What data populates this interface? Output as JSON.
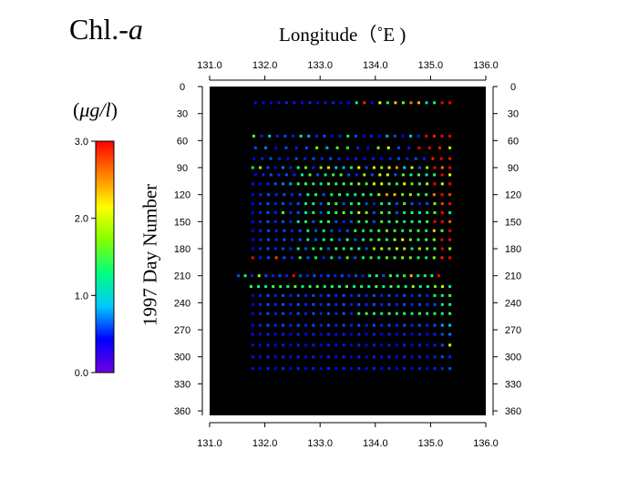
{
  "chart_data": {
    "type": "scatter",
    "title_main": "Chl.-",
    "title_italic": "a",
    "xlabel": "Longitude（˚E )",
    "ylabel": "1997  Day  Number",
    "unit_open": "(",
    "unit_italic": "μg/l",
    "unit_close": ")",
    "x_ticks": [
      "131.0",
      "132.0",
      "133.0",
      "134.0",
      "135.0",
      "136.0"
    ],
    "xlim": [
      131.0,
      136.0
    ],
    "y_ticks": [
      "0",
      "30",
      "60",
      "90",
      "120",
      "150",
      "180",
      "210",
      "240",
      "270",
      "300",
      "330",
      "360"
    ],
    "ylim": [
      0,
      365
    ],
    "colorbar": {
      "ticks": [
        "0.0",
        "1.0",
        "2.0",
        "3.0"
      ],
      "range": [
        0.0,
        3.0
      ],
      "colormap": [
        "#7000e0",
        "#0000ff",
        "#00c8ff",
        "#00ff80",
        "#80ff00",
        "#ffff00",
        "#ff8000",
        "#ff0000"
      ]
    },
    "background": "#000000",
    "rows": [
      {
        "day": 18,
        "x0": 131.83,
        "x1": 135.35,
        "n": 26,
        "vals": [
          0.3,
          0.4,
          0.4,
          0.3,
          0.5,
          0.3,
          0.4,
          0.5,
          0.4,
          0.3,
          0.5,
          0.4,
          0.4,
          1.2,
          2.9,
          0.4,
          2.1,
          1.4,
          2.3,
          1.6,
          2.6,
          2.4,
          1.0,
          1.2,
          3.0,
          3.0
        ]
      },
      {
        "day": 55,
        "x0": 131.8,
        "x1": 135.35,
        "n": 26,
        "vals": [
          1.6,
          0.5,
          1.0,
          0.5,
          0.6,
          0.5,
          1.2,
          0.8,
          0.5,
          0.6,
          0.4,
          0.5,
          1.3,
          0.6,
          0.4,
          0.5,
          0.4,
          0.8,
          0.6,
          0.4,
          0.9,
          0.5,
          3.0,
          2.9,
          3.0,
          3.0
        ]
      },
      {
        "day": 68,
        "x0": 131.83,
        "x1": 135.35,
        "n": 20,
        "vals": [
          0.6,
          0.7,
          0.4,
          0.6,
          0.5,
          0.6,
          1.7,
          0.8,
          1.6,
          1.4,
          0.5,
          0.4,
          1.7,
          2.1,
          0.6,
          0.5,
          3.0,
          3.0,
          2.9,
          1.9
        ]
      },
      {
        "day": 80,
        "x0": 131.8,
        "x1": 135.35,
        "n": 24,
        "vals": [
          0.4,
          0.5,
          0.6,
          0.5,
          0.4,
          0.6,
          0.5,
          0.6,
          0.5,
          0.6,
          0.5,
          0.4,
          0.5,
          0.4,
          0.5,
          0.4,
          0.5,
          0.6,
          0.5,
          0.6,
          0.5,
          2.9,
          3.0,
          2.9
        ]
      },
      {
        "day": 90,
        "x0": 131.78,
        "x1": 135.35,
        "n": 27,
        "vals": [
          1.3,
          1.8,
          0.6,
          0.4,
          0.7,
          0.5,
          1.4,
          1.6,
          0.5,
          1.7,
          2.3,
          0.9,
          0.8,
          1.3,
          2.1,
          0.6,
          2.2,
          1.7,
          2.0,
          2.5,
          0.9,
          2.0,
          0.6,
          1.8,
          3.0,
          2.6,
          3.0
        ]
      },
      {
        "day": 98,
        "x0": 131.83,
        "x1": 135.35,
        "n": 26,
        "vals": [
          0.4,
          0.5,
          0.6,
          0.5,
          0.6,
          0.5,
          1.2,
          1.5,
          0.6,
          1.2,
          1.4,
          1.5,
          0.6,
          0.5,
          1.8,
          0.6,
          2.0,
          2.0,
          0.6,
          1.6,
          1.3,
          1.5,
          1.2,
          1.4,
          3.0,
          2.1
        ]
      },
      {
        "day": 108,
        "x0": 131.78,
        "x1": 135.35,
        "n": 27,
        "vals": [
          0.3,
          0.4,
          0.5,
          0.6,
          0.7,
          0.8,
          1.4,
          1.5,
          1.3,
          1.2,
          1.6,
          1.4,
          1.5,
          1.6,
          1.7,
          1.5,
          2.2,
          2.0,
          1.5,
          1.4,
          2.1,
          1.5,
          1.4,
          1.9,
          3.0,
          2.0,
          3.0
        ]
      },
      {
        "day": 120,
        "x0": 131.78,
        "x1": 135.35,
        "n": 26,
        "vals": [
          0.4,
          0.5,
          0.6,
          0.5,
          0.6,
          0.5,
          0.6,
          1.2,
          1.4,
          0.6,
          1.3,
          1.5,
          1.3,
          1.2,
          1.4,
          1.3,
          1.8,
          2.5,
          2.4,
          1.6,
          1.8,
          1.5,
          1.4,
          2.6,
          3.0,
          2.8
        ]
      },
      {
        "day": 130,
        "x0": 131.78,
        "x1": 135.35,
        "n": 27,
        "vals": [
          0.4,
          0.5,
          0.6,
          0.5,
          0.6,
          0.5,
          0.6,
          1.2,
          1.3,
          0.6,
          1.4,
          1.5,
          0.6,
          1.2,
          1.4,
          0.6,
          0.5,
          1.3,
          1.2,
          0.6,
          1.5,
          0.6,
          0.5,
          0.6,
          1.7,
          2.8,
          3.0
        ]
      },
      {
        "day": 140,
        "x0": 131.78,
        "x1": 135.35,
        "n": 27,
        "vals": [
          0.4,
          0.5,
          0.6,
          0.5,
          1.6,
          0.5,
          0.6,
          1.2,
          1.4,
          0.6,
          1.3,
          1.5,
          1.7,
          1.2,
          2.0,
          1.7,
          0.6,
          1.5,
          1.4,
          0.6,
          1.3,
          1.5,
          1.2,
          1.4,
          1.6,
          3.0,
          1.2
        ]
      },
      {
        "day": 150,
        "x0": 131.78,
        "x1": 135.35,
        "n": 27,
        "vals": [
          0.4,
          0.5,
          0.6,
          0.5,
          0.6,
          0.5,
          1.2,
          1.4,
          0.6,
          1.3,
          1.5,
          0.6,
          0.5,
          0.6,
          1.2,
          1.4,
          0.6,
          1.5,
          1.3,
          1.5,
          1.2,
          1.4,
          1.3,
          1.5,
          3.0,
          3.0,
          2.7
        ]
      },
      {
        "day": 160,
        "x0": 131.78,
        "x1": 135.35,
        "n": 26,
        "vals": [
          0.4,
          0.5,
          0.6,
          0.5,
          0.6,
          0.5,
          0.6,
          1.2,
          0.6,
          1.3,
          0.6,
          0.5,
          0.6,
          1.5,
          1.3,
          1.2,
          1.4,
          1.6,
          1.5,
          1.3,
          1.4,
          1.5,
          1.3,
          2.3,
          1.6,
          3.0
        ]
      },
      {
        "day": 170,
        "x0": 131.78,
        "x1": 135.35,
        "n": 26,
        "vals": [
          0.4,
          0.5,
          0.6,
          0.5,
          0.6,
          0.5,
          0.6,
          1.2,
          0.6,
          1.3,
          1.4,
          0.6,
          1.5,
          0.6,
          1.2,
          1.4,
          1.6,
          1.3,
          1.8,
          2.1,
          1.6,
          1.4,
          1.5,
          1.7,
          3.0,
          3.0
        ]
      },
      {
        "day": 180,
        "x0": 131.78,
        "x1": 135.35,
        "n": 27,
        "vals": [
          0.4,
          0.5,
          0.6,
          0.5,
          0.6,
          0.5,
          1.2,
          0.6,
          1.3,
          1.4,
          0.6,
          1.5,
          1.3,
          1.4,
          1.2,
          0.6,
          1.7,
          1.9,
          1.5,
          2.0,
          1.8,
          1.2,
          1.8,
          1.6,
          1.5,
          3.0,
          1.8
        ]
      },
      {
        "day": 190,
        "x0": 131.78,
        "x1": 135.35,
        "n": 26,
        "vals": [
          3.0,
          0.5,
          0.6,
          2.8,
          0.6,
          0.5,
          1.4,
          0.6,
          1.3,
          0.5,
          1.2,
          0.6,
          1.5,
          0.6,
          1.3,
          1.4,
          1.2,
          1.6,
          1.5,
          1.8,
          1.6,
          1.4,
          1.3,
          1.7,
          2.9,
          3.0
        ]
      },
      {
        "day": 210,
        "x0": 131.52,
        "x1": 135.15,
        "n": 30,
        "vals": [
          0.6,
          1.3,
          0.5,
          1.8,
          0.6,
          0.5,
          0.6,
          0.5,
          3.0,
          0.6,
          0.5,
          0.6,
          0.5,
          0.6,
          0.5,
          0.6,
          0.5,
          0.6,
          0.5,
          1.3,
          1.4,
          0.6,
          1.5,
          1.3,
          1.4,
          2.4,
          1.2,
          1.3,
          1.4,
          3.0
        ]
      },
      {
        "day": 222,
        "x0": 131.75,
        "x1": 135.35,
        "n": 28,
        "vals": [
          1.4,
          1.3,
          1.2,
          1.5,
          1.4,
          1.3,
          1.6,
          1.2,
          1.4,
          1.5,
          1.3,
          1.4,
          1.2,
          1.5,
          1.3,
          1.4,
          1.2,
          1.6,
          1.3,
          1.5,
          1.4,
          1.3,
          1.8,
          1.2,
          1.4,
          1.6,
          1.9,
          1.2
        ]
      },
      {
        "day": 232,
        "x0": 131.78,
        "x1": 135.35,
        "n": 27,
        "vals": [
          0.4,
          0.5,
          0.6,
          0.5,
          0.6,
          0.5,
          0.6,
          0.5,
          0.6,
          0.5,
          0.6,
          0.5,
          0.6,
          0.5,
          0.6,
          0.5,
          0.6,
          0.5,
          0.6,
          0.5,
          0.6,
          0.5,
          0.6,
          0.5,
          1.3,
          1.2,
          1.4
        ]
      },
      {
        "day": 242,
        "x0": 131.78,
        "x1": 135.35,
        "n": 27,
        "vals": [
          0.4,
          0.5,
          0.6,
          0.5,
          0.6,
          0.5,
          0.6,
          0.5,
          0.6,
          0.5,
          0.6,
          0.5,
          0.6,
          0.5,
          0.6,
          0.5,
          0.6,
          0.5,
          0.6,
          0.5,
          0.6,
          0.5,
          0.6,
          0.5,
          0.6,
          1.2,
          1.3
        ]
      },
      {
        "day": 252,
        "x0": 131.78,
        "x1": 135.35,
        "n": 27,
        "vals": [
          0.4,
          0.5,
          0.6,
          0.5,
          0.6,
          0.5,
          0.6,
          0.5,
          0.6,
          0.5,
          0.6,
          0.5,
          0.6,
          0.5,
          1.3,
          1.6,
          1.4,
          1.2,
          1.5,
          1.3,
          1.4,
          1.2,
          1.5,
          1.3,
          1.4,
          1.2,
          1.5
        ]
      },
      {
        "day": 265,
        "x0": 131.78,
        "x1": 135.35,
        "n": 27,
        "vals": [
          0.4,
          0.5,
          0.6,
          0.5,
          0.6,
          0.5,
          0.6,
          0.5,
          0.6,
          0.5,
          0.6,
          0.5,
          0.6,
          0.5,
          0.6,
          0.5,
          0.6,
          0.5,
          0.6,
          0.5,
          0.6,
          0.5,
          0.6,
          0.5,
          0.6,
          0.8,
          0.9
        ]
      },
      {
        "day": 275,
        "x0": 131.78,
        "x1": 135.35,
        "n": 27,
        "vals": [
          0.3,
          0.4,
          0.5,
          0.4,
          0.5,
          0.4,
          0.5,
          0.4,
          0.5,
          0.4,
          0.5,
          0.4,
          0.5,
          0.4,
          0.5,
          0.4,
          0.5,
          0.4,
          0.5,
          0.4,
          0.5,
          0.4,
          0.5,
          0.4,
          0.5,
          0.6,
          0.7
        ]
      },
      {
        "day": 287,
        "x0": 131.78,
        "x1": 135.35,
        "n": 27,
        "vals": [
          0.3,
          0.4,
          0.5,
          0.4,
          0.5,
          0.4,
          0.5,
          0.4,
          0.5,
          0.4,
          0.5,
          0.4,
          0.5,
          0.4,
          0.5,
          0.4,
          0.5,
          0.4,
          0.5,
          0.4,
          0.5,
          0.4,
          0.5,
          0.4,
          0.5,
          0.6,
          2.0
        ]
      },
      {
        "day": 300,
        "x0": 131.78,
        "x1": 135.35,
        "n": 27,
        "vals": [
          0.3,
          0.4,
          0.5,
          0.4,
          0.5,
          0.4,
          0.5,
          0.4,
          0.5,
          0.4,
          0.5,
          0.4,
          0.5,
          0.4,
          0.5,
          0.4,
          0.5,
          0.4,
          0.5,
          0.4,
          0.5,
          0.4,
          0.5,
          0.4,
          0.5,
          0.6,
          0.5
        ]
      },
      {
        "day": 313,
        "x0": 131.78,
        "x1": 135.35,
        "n": 27,
        "vals": [
          0.3,
          0.4,
          0.5,
          0.4,
          0.5,
          0.4,
          0.5,
          0.4,
          0.5,
          0.4,
          0.5,
          0.4,
          0.5,
          0.4,
          0.5,
          0.4,
          0.5,
          0.4,
          0.5,
          0.4,
          0.5,
          0.4,
          0.5,
          0.4,
          0.5,
          0.5,
          0.6
        ]
      }
    ]
  }
}
